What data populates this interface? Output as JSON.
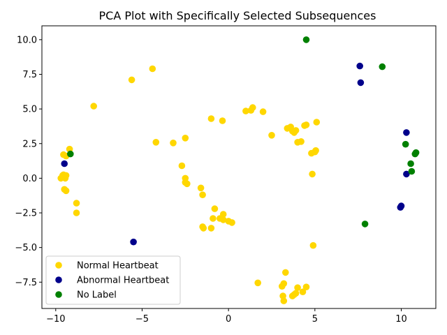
{
  "chart_data": {
    "type": "scatter",
    "title": "PCA Plot with Specifically Selected Subsequences",
    "xlabel": "",
    "ylabel": "",
    "xlim": [
      -10.8,
      12.0
    ],
    "ylim": [
      -9.4,
      11.0
    ],
    "xticks": [
      -10,
      -5,
      0,
      5,
      10
    ],
    "yticks": [
      -7.5,
      -5.0,
      -2.5,
      0.0,
      2.5,
      5.0,
      7.5,
      10.0
    ],
    "ytick_labels": [
      "−7.5",
      "−5.0",
      "−2.5",
      "0.0",
      "2.5",
      "5.0",
      "7.5",
      "10.0"
    ],
    "xtick_labels": [
      "−10",
      "−5",
      "0",
      "5",
      "10"
    ],
    "grid": false,
    "legend_position": "bottom-left",
    "series": [
      {
        "name": "Normal Heartbeat",
        "color": "#ffd700",
        "points": [
          [
            -9.7,
            0.0
          ],
          [
            -9.6,
            0.2
          ],
          [
            -9.55,
            0.25
          ],
          [
            -9.5,
            0.1
          ],
          [
            -9.45,
            0.0
          ],
          [
            -9.4,
            0.2
          ],
          [
            -9.5,
            -0.8
          ],
          [
            -9.4,
            -0.9
          ],
          [
            -9.55,
            1.7
          ],
          [
            -9.4,
            1.6
          ],
          [
            -9.2,
            2.1
          ],
          [
            -8.8,
            -1.8
          ],
          [
            -8.8,
            -2.5
          ],
          [
            -7.8,
            5.2
          ],
          [
            -5.6,
            7.1
          ],
          [
            -4.4,
            7.9
          ],
          [
            -4.2,
            2.6
          ],
          [
            -3.2,
            2.55
          ],
          [
            -2.7,
            0.9
          ],
          [
            -2.5,
            2.9
          ],
          [
            -2.5,
            0.0
          ],
          [
            -2.5,
            -0.3
          ],
          [
            -2.4,
            -0.4
          ],
          [
            -1.6,
            -0.7
          ],
          [
            -1.5,
            -1.2
          ],
          [
            -1.5,
            -3.5
          ],
          [
            -1.45,
            -3.6
          ],
          [
            -1.0,
            -3.6
          ],
          [
            -0.9,
            -2.9
          ],
          [
            -0.8,
            -2.2
          ],
          [
            -1.0,
            4.3
          ],
          [
            -0.35,
            4.15
          ],
          [
            -0.5,
            -2.9
          ],
          [
            -0.3,
            -3.0
          ],
          [
            -0.3,
            -2.6
          ],
          [
            0.0,
            -3.1
          ],
          [
            0.2,
            -3.2
          ],
          [
            1.0,
            4.85
          ],
          [
            1.3,
            4.9
          ],
          [
            1.4,
            5.1
          ],
          [
            2.0,
            4.8
          ],
          [
            2.5,
            3.1
          ],
          [
            3.4,
            3.6
          ],
          [
            3.6,
            3.7
          ],
          [
            3.7,
            3.4
          ],
          [
            3.8,
            3.3
          ],
          [
            3.9,
            3.45
          ],
          [
            4.0,
            2.6
          ],
          [
            4.2,
            2.65
          ],
          [
            4.4,
            3.8
          ],
          [
            4.5,
            3.85
          ],
          [
            4.8,
            1.8
          ],
          [
            5.0,
            1.9
          ],
          [
            5.05,
            2.0
          ],
          [
            5.1,
            4.05
          ],
          [
            4.85,
            0.3
          ],
          [
            4.9,
            -4.85
          ],
          [
            1.7,
            -7.55
          ],
          [
            3.3,
            -6.8
          ],
          [
            3.2,
            -7.6
          ],
          [
            3.1,
            -7.8
          ],
          [
            3.15,
            -8.5
          ],
          [
            3.2,
            -8.85
          ],
          [
            3.7,
            -8.5
          ],
          [
            3.8,
            -8.4
          ],
          [
            3.9,
            -8.3
          ],
          [
            4.0,
            -7.9
          ],
          [
            4.3,
            -8.2
          ],
          [
            4.5,
            -7.85
          ]
        ]
      },
      {
        "name": "Abnormal Heartbeat",
        "color": "#00008b",
        "points": [
          [
            -9.5,
            1.05
          ],
          [
            -5.5,
            -4.6
          ],
          [
            7.6,
            8.1
          ],
          [
            7.65,
            6.9
          ],
          [
            10.0,
            -2.0
          ],
          [
            9.95,
            -2.1
          ],
          [
            10.3,
            3.3
          ],
          [
            10.3,
            0.3
          ]
        ]
      },
      {
        "name": "No Label",
        "color": "#008000",
        "points": [
          [
            -9.15,
            1.75
          ],
          [
            4.5,
            10.0
          ],
          [
            8.9,
            8.05
          ],
          [
            7.9,
            -3.3
          ],
          [
            10.25,
            2.45
          ],
          [
            10.55,
            1.05
          ],
          [
            10.6,
            0.5
          ],
          [
            10.8,
            1.75
          ],
          [
            10.85,
            1.85
          ]
        ]
      }
    ]
  }
}
